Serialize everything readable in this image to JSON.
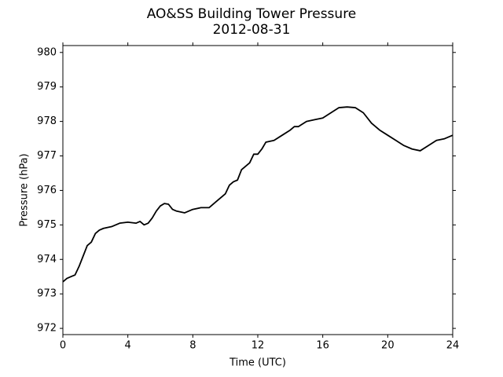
{
  "chart_data": {
    "type": "line",
    "title": "AO&SS Building Tower Pressure",
    "subtitle": "2012-08-31",
    "x_label": "Time (UTC)",
    "y_label": "Pressure (hPa)",
    "x": [
      0,
      0.25,
      0.5,
      0.75,
      1,
      1.25,
      1.5,
      1.75,
      2,
      2.25,
      2.5,
      3,
      3.5,
      4,
      4.5,
      4.75,
      5,
      5.25,
      5.5,
      5.75,
      6,
      6.25,
      6.5,
      6.75,
      7,
      7.5,
      8,
      8.5,
      9,
      9.5,
      10,
      10.25,
      10.5,
      10.75,
      11,
      11.25,
      11.5,
      11.75,
      12,
      12.25,
      12.5,
      13,
      13.5,
      14,
      14.25,
      14.5,
      15,
      15.5,
      16,
      16.5,
      17,
      17.5,
      18,
      18.5,
      19,
      19.5,
      20,
      20.5,
      21,
      21.5,
      22,
      22.5,
      23,
      23.5,
      24
    ],
    "series": [
      {
        "name": "Pressure",
        "color": "#000000",
        "values": [
          973.35,
          973.45,
          973.5,
          973.55,
          973.8,
          974.1,
          974.4,
          974.5,
          974.75,
          974.85,
          974.9,
          974.95,
          975.05,
          975.08,
          975.05,
          975.1,
          975.0,
          975.05,
          975.2,
          975.4,
          975.55,
          975.62,
          975.6,
          975.45,
          975.4,
          975.35,
          975.45,
          975.5,
          975.5,
          975.7,
          975.9,
          976.15,
          976.25,
          976.3,
          976.6,
          976.7,
          976.8,
          977.05,
          977.05,
          977.2,
          977.4,
          977.45,
          977.6,
          977.75,
          977.85,
          977.85,
          978.0,
          978.05,
          978.1,
          978.25,
          978.4,
          978.42,
          978.4,
          978.25,
          977.95,
          977.75,
          977.6,
          977.45,
          977.3,
          977.2,
          977.15,
          977.3,
          977.45,
          977.5,
          977.6
        ]
      }
    ],
    "xlim": [
      0,
      24
    ],
    "xticks": [
      0,
      4,
      8,
      12,
      16,
      20,
      24
    ],
    "ylim": [
      971.82,
      980.2
    ],
    "yticks": [
      972,
      973,
      974,
      975,
      976,
      977,
      978,
      979,
      980
    ],
    "grid": false
  }
}
